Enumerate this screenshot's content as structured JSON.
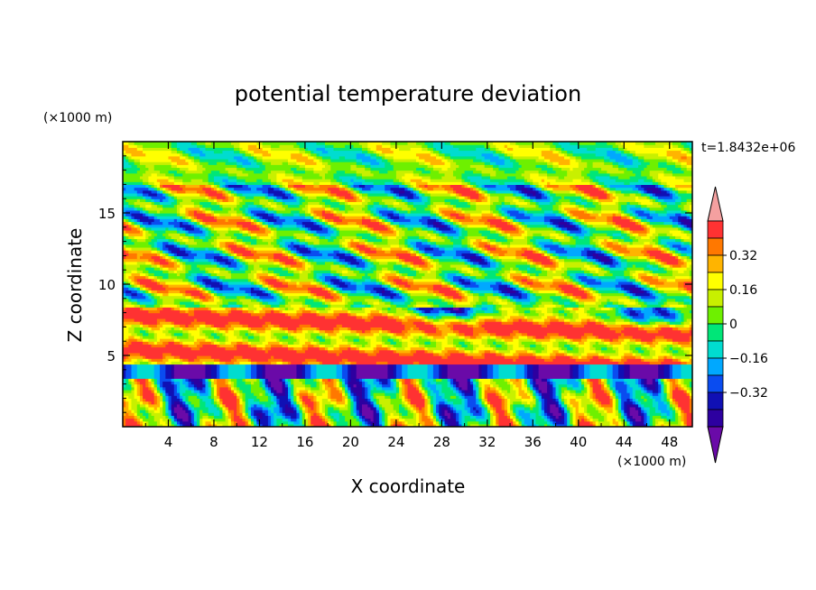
{
  "chart_data": {
    "type": "heatmap",
    "title": "potential temperature deviation",
    "xlabel": "X coordinate",
    "ylabel": "Z coordinate",
    "x_unit": "(×1000 m)",
    "y_unit": "(×1000 m)",
    "time_label": "t=1.8432e+06",
    "xlim": [
      0,
      50
    ],
    "ylim": [
      0,
      20
    ],
    "x_ticks": [
      4,
      8,
      12,
      16,
      20,
      24,
      28,
      32,
      36,
      40,
      44,
      48
    ],
    "y_ticks": [
      5,
      10,
      15
    ],
    "colorbar": {
      "levels": [
        -0.48,
        -0.4,
        -0.32,
        -0.24,
        -0.16,
        -0.08,
        0,
        0.08,
        0.16,
        0.24,
        0.32,
        0.4
      ],
      "colors": [
        "#6a0aa8",
        "#2d00a0",
        "#1010b4",
        "#0a4cf0",
        "#00a8ff",
        "#00dcd0",
        "#00e678",
        "#6ef000",
        "#c8f000",
        "#ffff00",
        "#ffb400",
        "#ff7800",
        "#ff3232",
        "#f4a0a0"
      ],
      "tick_labels": [
        "0.32",
        "0.16",
        "0",
        "−0.16",
        "−0.32"
      ],
      "tick_values": [
        0.32,
        0.16,
        0,
        -0.16,
        -0.32
      ],
      "extend": "both"
    }
  }
}
